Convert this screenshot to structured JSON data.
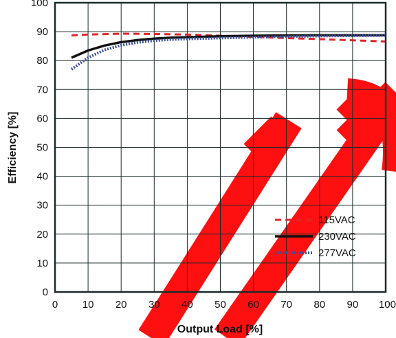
{
  "chart_data": {
    "type": "line",
    "title": "",
    "xlabel": "Output Load [%]",
    "ylabel": "Efficiency [%]",
    "xlim": [
      0,
      100
    ],
    "ylim": [
      0,
      100
    ],
    "xticks": [
      "0",
      "10",
      "20",
      "30",
      "40",
      "50",
      "60",
      "70",
      "80",
      "90",
      "100"
    ],
    "yticks": [
      "0",
      "10",
      "20",
      "30",
      "40",
      "50",
      "60",
      "70",
      "80",
      "90",
      "100"
    ],
    "grid": true,
    "legend_position": "lower-right",
    "series": [
      {
        "name": "115VAC",
        "color": "#e0262b",
        "style": "dashed",
        "x": [
          5,
          10,
          20,
          30,
          40,
          50,
          60,
          70,
          80,
          90,
          100
        ],
        "y": [
          88.7,
          89.0,
          89.3,
          89.2,
          89.0,
          88.6,
          88.2,
          87.8,
          87.4,
          87.0,
          86.6
        ]
      },
      {
        "name": "230VAC",
        "color": "#111111",
        "style": "solid",
        "x": [
          5,
          10,
          15,
          20,
          25,
          30,
          35,
          40,
          50,
          60,
          70,
          80,
          90,
          100
        ],
        "y": [
          81.0,
          83.5,
          85.2,
          86.4,
          87.1,
          87.6,
          87.9,
          88.1,
          88.4,
          88.6,
          88.7,
          88.8,
          88.8,
          88.8
        ]
      },
      {
        "name": "277VAC",
        "color": "#3a4fa0",
        "style": "dotted",
        "x": [
          5,
          10,
          15,
          20,
          25,
          30,
          35,
          40,
          50,
          60,
          70,
          80,
          90,
          100
        ],
        "y": [
          77.0,
          81.0,
          83.7,
          85.3,
          86.3,
          86.9,
          87.3,
          87.5,
          87.8,
          88.1,
          88.3,
          88.5,
          88.6,
          88.7
        ]
      }
    ]
  },
  "watermark": {
    "color": "#ff1010"
  }
}
